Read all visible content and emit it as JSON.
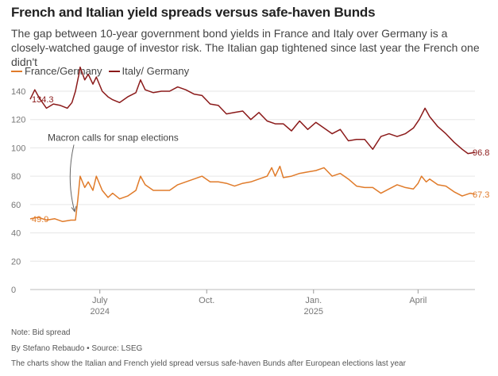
{
  "title": "French and Italian yield spreads versus safe-haven Bunds",
  "subtitle": "The gap between 10-year government bond yields in France and Italy over Germany is a closely-watched gauge of investor risk. The Italian gap tightened since last year the French one didn't",
  "legend": [
    {
      "name": "France/Germany",
      "color": "#e07b2a"
    },
    {
      "name": "Italy/ Germany",
      "color": "#8b1a1a"
    }
  ],
  "notes": {
    "note": "Note: Bid spread",
    "byline": "By Stefano Rebaudo • Source: LSEG",
    "caption": "The charts show the Italian and French yield spread versus safe-haven Bunds after European elections last year"
  },
  "chart_data": {
    "type": "line",
    "title": "French and Italian yield spreads versus safe-haven Bunds",
    "ylim": [
      0,
      140
    ],
    "yticks": [
      0,
      20,
      40,
      60,
      80,
      100,
      120,
      140
    ],
    "xlim": [
      "2024-05-02",
      "2025-05-20"
    ],
    "xticks": [
      {
        "date": "2024-07-01",
        "label": "July",
        "sub": "2024"
      },
      {
        "date": "2024-10-01",
        "label": "Oct.",
        "sub": ""
      },
      {
        "date": "2025-01-01",
        "label": "Jan.",
        "sub": "2025"
      },
      {
        "date": "2025-04-01",
        "label": "April",
        "sub": ""
      }
    ],
    "grid": true,
    "annotation": {
      "text": "Macron calls for snap elections",
      "date": "2024-06-10"
    },
    "series": [
      {
        "name": "France/Germany",
        "color": "#e07b2a",
        "start_label": "49.9",
        "end_label": "67.3",
        "points": [
          [
            "2024-05-02",
            49.9
          ],
          [
            "2024-05-09",
            51
          ],
          [
            "2024-05-16",
            49
          ],
          [
            "2024-05-23",
            50
          ],
          [
            "2024-05-30",
            48
          ],
          [
            "2024-06-06",
            49
          ],
          [
            "2024-06-10",
            49
          ],
          [
            "2024-06-12",
            63
          ],
          [
            "2024-06-14",
            80
          ],
          [
            "2024-06-18",
            72
          ],
          [
            "2024-06-21",
            76
          ],
          [
            "2024-06-25",
            70
          ],
          [
            "2024-06-28",
            80
          ],
          [
            "2024-07-03",
            70
          ],
          [
            "2024-07-08",
            65
          ],
          [
            "2024-07-12",
            68
          ],
          [
            "2024-07-18",
            64
          ],
          [
            "2024-07-25",
            66
          ],
          [
            "2024-08-01",
            70
          ],
          [
            "2024-08-05",
            80
          ],
          [
            "2024-08-09",
            74
          ],
          [
            "2024-08-16",
            70
          ],
          [
            "2024-08-23",
            70
          ],
          [
            "2024-08-30",
            70
          ],
          [
            "2024-09-06",
            74
          ],
          [
            "2024-09-13",
            76
          ],
          [
            "2024-09-20",
            78
          ],
          [
            "2024-09-27",
            80
          ],
          [
            "2024-10-04",
            76
          ],
          [
            "2024-10-11",
            76
          ],
          [
            "2024-10-18",
            75
          ],
          [
            "2024-10-25",
            73
          ],
          [
            "2024-11-01",
            75
          ],
          [
            "2024-11-08",
            76
          ],
          [
            "2024-11-15",
            78
          ],
          [
            "2024-11-22",
            80
          ],
          [
            "2024-11-26",
            86
          ],
          [
            "2024-11-29",
            80
          ],
          [
            "2024-12-03",
            87
          ],
          [
            "2024-12-06",
            79
          ],
          [
            "2024-12-13",
            80
          ],
          [
            "2024-12-20",
            82
          ],
          [
            "2024-12-27",
            83
          ],
          [
            "2025-01-03",
            84
          ],
          [
            "2025-01-10",
            86
          ],
          [
            "2025-01-17",
            80
          ],
          [
            "2025-01-24",
            82
          ],
          [
            "2025-01-31",
            78
          ],
          [
            "2025-02-07",
            73
          ],
          [
            "2025-02-14",
            72
          ],
          [
            "2025-02-21",
            72
          ],
          [
            "2025-02-28",
            68
          ],
          [
            "2025-03-07",
            71
          ],
          [
            "2025-03-14",
            74
          ],
          [
            "2025-03-21",
            72
          ],
          [
            "2025-03-28",
            71
          ],
          [
            "2025-04-01",
            75
          ],
          [
            "2025-04-04",
            80
          ],
          [
            "2025-04-08",
            76
          ],
          [
            "2025-04-11",
            78
          ],
          [
            "2025-04-18",
            74
          ],
          [
            "2025-04-25",
            73
          ],
          [
            "2025-05-02",
            69
          ],
          [
            "2025-05-09",
            66
          ],
          [
            "2025-05-16",
            68
          ],
          [
            "2025-05-20",
            67.3
          ]
        ]
      },
      {
        "name": "Italy/ Germany",
        "color": "#8b1a1a",
        "start_label": "134.3",
        "end_label": "96.8",
        "points": [
          [
            "2024-05-02",
            134.3
          ],
          [
            "2024-05-06",
            141
          ],
          [
            "2024-05-10",
            135
          ],
          [
            "2024-05-16",
            128
          ],
          [
            "2024-05-22",
            131
          ],
          [
            "2024-05-28",
            130
          ],
          [
            "2024-06-03",
            128
          ],
          [
            "2024-06-07",
            132
          ],
          [
            "2024-06-10",
            140
          ],
          [
            "2024-06-13",
            152
          ],
          [
            "2024-06-14",
            157
          ],
          [
            "2024-06-18",
            148
          ],
          [
            "2024-06-21",
            152
          ],
          [
            "2024-06-25",
            145
          ],
          [
            "2024-06-28",
            150
          ],
          [
            "2024-07-03",
            140
          ],
          [
            "2024-07-08",
            136
          ],
          [
            "2024-07-12",
            134
          ],
          [
            "2024-07-18",
            132
          ],
          [
            "2024-07-25",
            136
          ],
          [
            "2024-08-01",
            139
          ],
          [
            "2024-08-05",
            148
          ],
          [
            "2024-08-09",
            141
          ],
          [
            "2024-08-16",
            139
          ],
          [
            "2024-08-23",
            140
          ],
          [
            "2024-08-30",
            140
          ],
          [
            "2024-09-06",
            143
          ],
          [
            "2024-09-13",
            141
          ],
          [
            "2024-09-20",
            138
          ],
          [
            "2024-09-27",
            137
          ],
          [
            "2024-10-04",
            131
          ],
          [
            "2024-10-11",
            130
          ],
          [
            "2024-10-18",
            124
          ],
          [
            "2024-10-25",
            125
          ],
          [
            "2024-11-01",
            126
          ],
          [
            "2024-11-08",
            120
          ],
          [
            "2024-11-15",
            125
          ],
          [
            "2024-11-22",
            119
          ],
          [
            "2024-11-29",
            117
          ],
          [
            "2024-12-06",
            117
          ],
          [
            "2024-12-13",
            112
          ],
          [
            "2024-12-20",
            119
          ],
          [
            "2024-12-27",
            113
          ],
          [
            "2025-01-03",
            118
          ],
          [
            "2025-01-10",
            114
          ],
          [
            "2025-01-17",
            110
          ],
          [
            "2025-01-24",
            113
          ],
          [
            "2025-01-31",
            105
          ],
          [
            "2025-02-07",
            106
          ],
          [
            "2025-02-14",
            106
          ],
          [
            "2025-02-21",
            99
          ],
          [
            "2025-02-28",
            108
          ],
          [
            "2025-03-07",
            110
          ],
          [
            "2025-03-14",
            108
          ],
          [
            "2025-03-21",
            110
          ],
          [
            "2025-03-28",
            114
          ],
          [
            "2025-04-02",
            120
          ],
          [
            "2025-04-07",
            128
          ],
          [
            "2025-04-11",
            122
          ],
          [
            "2025-04-18",
            115
          ],
          [
            "2025-04-25",
            110
          ],
          [
            "2025-05-02",
            104
          ],
          [
            "2025-05-09",
            99
          ],
          [
            "2025-05-14",
            96
          ],
          [
            "2025-05-20",
            96.8
          ]
        ]
      }
    ]
  }
}
